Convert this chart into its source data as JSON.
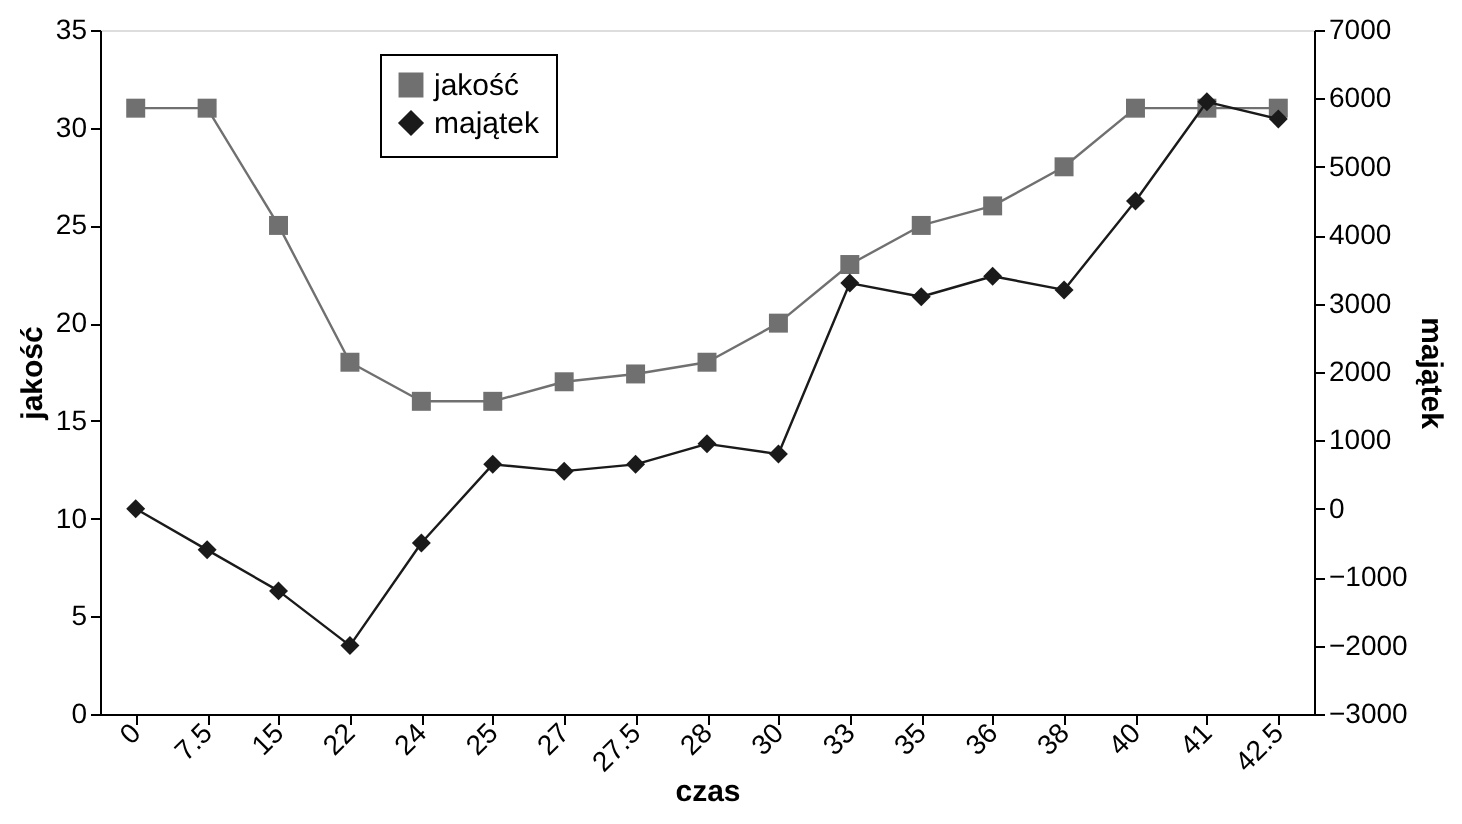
{
  "chart_data": {
    "type": "line",
    "xlabel": "czas",
    "ylabel": "jakość",
    "y2label": "majątek",
    "categories": [
      "0",
      "7.5",
      "15",
      "22",
      "24",
      "25",
      "27",
      "27.5",
      "28",
      "30",
      "33",
      "35",
      "36",
      "38",
      "40",
      "41",
      "42.5"
    ],
    "series": [
      {
        "name": "jakość",
        "color": "#707070",
        "marker": "square",
        "values": [
          31,
          31,
          25,
          18,
          16,
          16,
          17,
          17.4,
          18,
          20,
          23,
          25,
          26,
          28,
          31,
          31,
          31
        ]
      },
      {
        "name": "majątek",
        "color": "#1a1a1a",
        "marker": "diamond",
        "axis": "y2",
        "values": [
          0,
          -600,
          -1200,
          -2000,
          -500,
          650,
          550,
          650,
          950,
          800,
          3300,
          3100,
          3400,
          3200,
          4500,
          5950,
          5700
        ]
      }
    ],
    "ylim": [
      0,
      35
    ],
    "yticks": [
      0,
      5,
      10,
      15,
      20,
      25,
      30,
      35
    ],
    "y2lim": [
      -3000,
      7000
    ],
    "y2ticks": [
      -3000,
      -2000,
      -1000,
      0,
      1000,
      2000,
      3000,
      4000,
      5000,
      6000,
      7000
    ],
    "grid": false,
    "legend": "top left",
    "line_style": "solid"
  }
}
